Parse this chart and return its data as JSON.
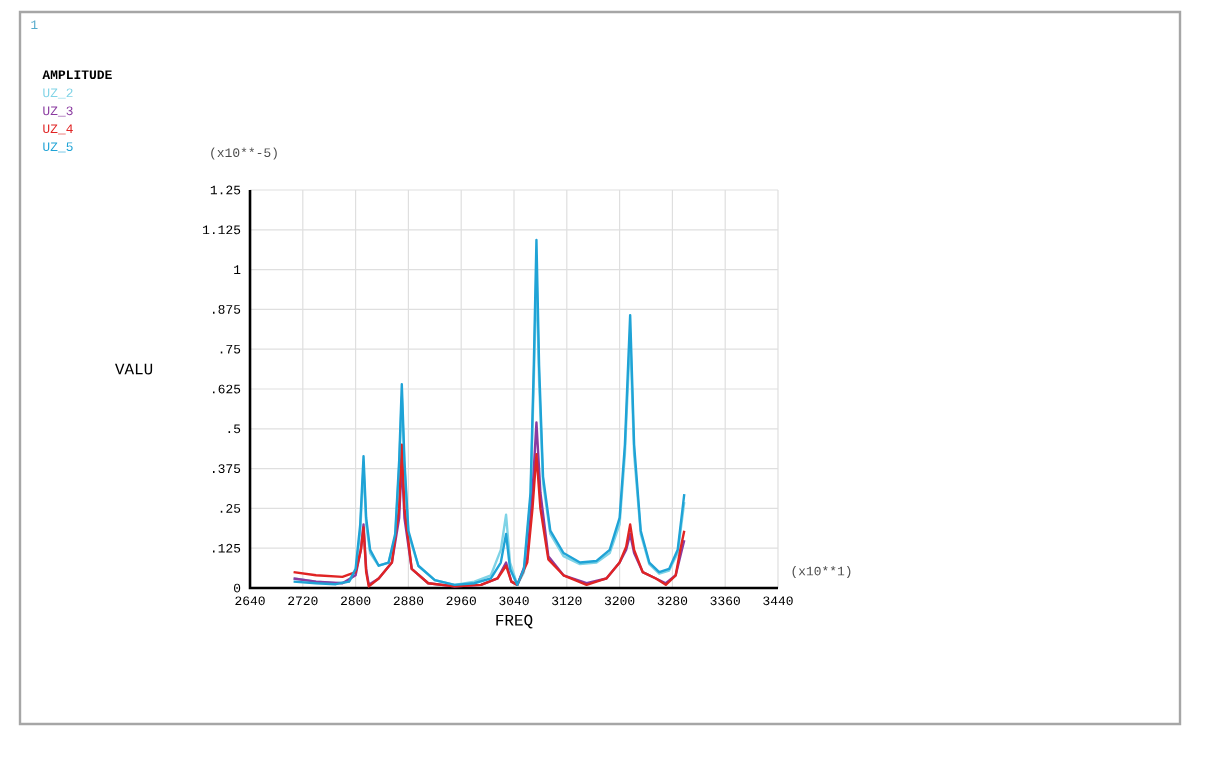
{
  "chart_data": {
    "type": "line",
    "legend_title": "AMPLITUDE",
    "xlabel": "FREQ",
    "ylabel": "VALU",
    "annotations": [
      "1",
      "(x10**-5)",
      "(x10**1)"
    ],
    "xlim": [
      2640,
      3440
    ],
    "xticks": [
      2640,
      2720,
      2800,
      2880,
      2960,
      3040,
      3120,
      3200,
      3280,
      3360,
      3440
    ],
    "ylim": [
      0,
      1.25
    ],
    "yticks": [
      0,
      {
        "value": 0.125,
        "label": ".125"
      },
      {
        "value": 0.25,
        "label": ".25"
      },
      {
        "value": 0.375,
        "label": ".375"
      },
      {
        "value": 0.5,
        "label": ".5"
      },
      {
        "value": 0.625,
        "label": ".625"
      },
      {
        "value": 0.75,
        "label": ".75"
      },
      {
        "value": 0.875,
        "label": ".875"
      },
      1,
      1.125,
      1.25
    ],
    "grid": true,
    "legend": "top left",
    "series": [
      {
        "name": "UZ_2",
        "color": "#7fd3e6",
        "x": [
          2706,
          2740,
          2770,
          2790,
          2800,
          2807,
          2812,
          2816,
          2822,
          2835,
          2850,
          2860,
          2866,
          2870,
          2874,
          2880,
          2895,
          2920,
          2950,
          2980,
          3005,
          3020,
          3028,
          3034,
          3045,
          3055,
          3065,
          3070,
          3074,
          3078,
          3084,
          3095,
          3115,
          3140,
          3165,
          3185,
          3200,
          3208,
          3216,
          3222,
          3232,
          3245,
          3260,
          3275,
          3288,
          3298
        ],
        "values": [
          0.03,
          0.02,
          0.015,
          0.02,
          0.05,
          0.18,
          0.38,
          0.2,
          0.11,
          0.07,
          0.08,
          0.16,
          0.38,
          0.6,
          0.38,
          0.17,
          0.07,
          0.025,
          0.01,
          0.02,
          0.04,
          0.12,
          0.23,
          0.08,
          0.01,
          0.05,
          0.28,
          0.65,
          1.0,
          0.65,
          0.33,
          0.17,
          0.1,
          0.075,
          0.08,
          0.11,
          0.2,
          0.42,
          0.8,
          0.42,
          0.17,
          0.075,
          0.045,
          0.055,
          0.11,
          0.27
        ]
      },
      {
        "name": "UZ_3",
        "color": "#8a3aa0",
        "x": [
          2706,
          2740,
          2780,
          2800,
          2808,
          2812,
          2816,
          2820,
          2835,
          2855,
          2866,
          2870,
          2874,
          2885,
          2910,
          2950,
          2990,
          3015,
          3028,
          3036,
          3045,
          3060,
          3068,
          3074,
          3080,
          3092,
          3115,
          3150,
          3180,
          3200,
          3210,
          3216,
          3222,
          3235,
          3255,
          3270,
          3285,
          3292,
          3298
        ],
        "values": [
          0.03,
          0.02,
          0.015,
          0.04,
          0.12,
          0.2,
          0.06,
          0.01,
          0.03,
          0.08,
          0.22,
          0.4,
          0.22,
          0.06,
          0.015,
          0.005,
          0.01,
          0.03,
          0.08,
          0.02,
          0.01,
          0.09,
          0.3,
          0.52,
          0.3,
          0.1,
          0.04,
          0.015,
          0.03,
          0.08,
          0.12,
          0.17,
          0.11,
          0.05,
          0.03,
          0.015,
          0.04,
          0.1,
          0.15
        ]
      },
      {
        "name": "UZ_4",
        "color": "#e02424",
        "x": [
          2706,
          2740,
          2780,
          2800,
          2808,
          2812,
          2816,
          2820,
          2835,
          2855,
          2866,
          2870,
          2874,
          2885,
          2910,
          2950,
          2990,
          3015,
          3028,
          3036,
          3045,
          3060,
          3068,
          3074,
          3080,
          3092,
          3115,
          3150,
          3180,
          3200,
          3210,
          3216,
          3222,
          3235,
          3255,
          3270,
          3285,
          3292,
          3298
        ],
        "values": [
          0.05,
          0.04,
          0.035,
          0.05,
          0.12,
          0.19,
          0.05,
          0.005,
          0.03,
          0.08,
          0.25,
          0.45,
          0.25,
          0.06,
          0.015,
          0.005,
          0.01,
          0.03,
          0.07,
          0.02,
          0.01,
          0.08,
          0.25,
          0.42,
          0.25,
          0.09,
          0.04,
          0.01,
          0.03,
          0.08,
          0.13,
          0.2,
          0.12,
          0.05,
          0.03,
          0.01,
          0.04,
          0.12,
          0.18
        ]
      },
      {
        "name": "UZ_5",
        "color": "#1fa3d6",
        "x": [
          2706,
          2740,
          2770,
          2790,
          2800,
          2807,
          2812,
          2816,
          2822,
          2835,
          2850,
          2860,
          2866,
          2870,
          2874,
          2880,
          2895,
          2920,
          2950,
          2980,
          3005,
          3020,
          3028,
          3034,
          3045,
          3055,
          3065,
          3070,
          3074,
          3078,
          3084,
          3095,
          3115,
          3140,
          3165,
          3185,
          3200,
          3208,
          3216,
          3222,
          3232,
          3245,
          3260,
          3275,
          3288,
          3298
        ],
        "values": [
          0.02,
          0.015,
          0.012,
          0.02,
          0.06,
          0.2,
          0.414,
          0.22,
          0.12,
          0.07,
          0.08,
          0.17,
          0.4,
          0.64,
          0.4,
          0.18,
          0.07,
          0.025,
          0.01,
          0.015,
          0.03,
          0.08,
          0.17,
          0.06,
          0.01,
          0.06,
          0.3,
          0.7,
          1.093,
          0.7,
          0.35,
          0.18,
          0.11,
          0.08,
          0.085,
          0.12,
          0.22,
          0.45,
          0.857,
          0.45,
          0.18,
          0.08,
          0.05,
          0.06,
          0.12,
          0.295
        ]
      }
    ]
  }
}
